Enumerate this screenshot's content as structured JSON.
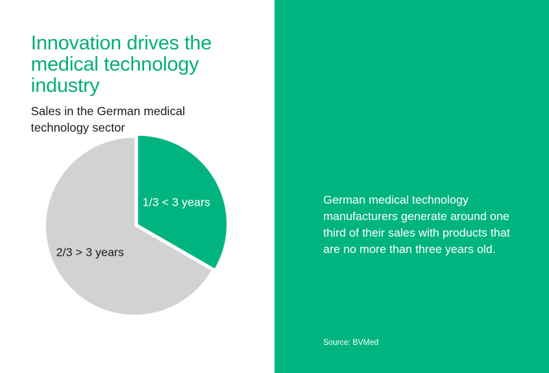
{
  "header": {
    "title": "Innovation drives the medical technology industry",
    "subtitle": "Sales in the German medical technology sector"
  },
  "chart_data": {
    "type": "pie",
    "slices": [
      {
        "label": "1/3 < 3 years",
        "fraction": 0.3333,
        "color": "#00b47f",
        "exploded": true,
        "label_color": "#ffffff"
      },
      {
        "label": "2/3 > 3 years",
        "fraction": 0.6667,
        "color": "#d2d2d2",
        "exploded": false,
        "label_color": "#1a1a1a"
      }
    ],
    "legend": "none"
  },
  "info": {
    "description": "German medical technology manufacturers generate around one third of their sales with products that are no more than three years old.",
    "source": "Source: BVMed"
  },
  "colors": {
    "accent": "#00b47f",
    "title": "#00ad79",
    "gray_slice": "#d2d2d2"
  }
}
